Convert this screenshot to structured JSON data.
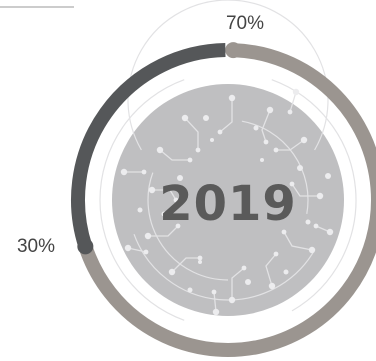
{
  "chart_data": {
    "type": "pie",
    "variant": "donut-ring",
    "center_label": "2019",
    "slices": [
      {
        "label": "70%",
        "value": 70,
        "color": "#9b9590"
      },
      {
        "label": "30%",
        "value": 30,
        "color": "#555759"
      }
    ],
    "title": "",
    "legend": "none"
  },
  "colors": {
    "inner_disc": "#bfbfc1",
    "circuit_lines": "#e2e2e4",
    "circuit_dots": "#ececee"
  },
  "decoration": {
    "top_left_rule": true
  }
}
